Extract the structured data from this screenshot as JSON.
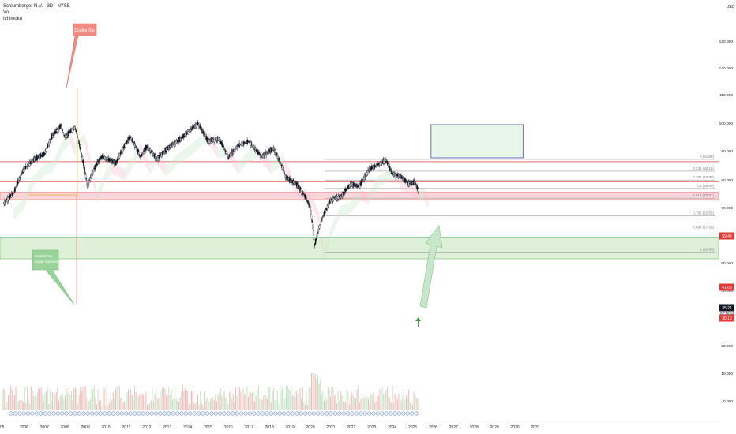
{
  "header": {
    "symbol": "Schlumberger N.V. · 3D · NYSE",
    "indicators": [
      "Vol",
      "Ichimoku"
    ]
  },
  "chart_data": {
    "type": "candlestick",
    "currency": "USD",
    "price_axis_ticks": [
      130,
      120,
      110,
      100,
      90,
      80,
      70,
      60,
      50,
      40,
      30,
      20,
      10,
      0
    ],
    "time_axis_ticks": [
      "2006",
      "2007",
      "2008",
      "2009",
      "2010",
      "2011",
      "2012",
      "2013",
      "2014",
      "2015",
      "2016",
      "2017",
      "2018",
      "2019",
      "2020",
      "2021",
      "2022",
      "2023",
      "2024",
      "2025",
      "2026",
      "2027",
      "2028",
      "2029",
      "2030",
      "2031"
    ],
    "first_tick_partial": "05",
    "price_labels": [
      {
        "value": "59.44",
        "color": "#e53935"
      },
      {
        "value": "41.63",
        "color": "#e53935"
      },
      {
        "value": "35.21",
        "color": "#131722"
      },
      {
        "value": "30.10",
        "color": "#e53935"
      }
    ],
    "current_price": 35.21,
    "countdown": "02:28:54",
    "fib_levels": [
      {
        "label": "0 (61.98)",
        "price": 61.98
      },
      {
        "label": "0.236 (50.15)",
        "price": 50.15
      },
      {
        "label": "0.382 (42.80)",
        "price": 42.8
      },
      {
        "label": "0.5 (36.90)",
        "price": 36.9
      },
      {
        "label": "0.618 (30.97)",
        "price": 30.97
      },
      {
        "label": "0.786 (22.55)",
        "price": 22.55
      },
      {
        "label": "0.886 (17.55)",
        "price": 17.55
      },
      {
        "label": "1 (11.80)",
        "price": 11.8
      }
    ],
    "horizontal_lines": [
      59.44,
      41.63,
      30.1
    ],
    "zones": [
      {
        "from": 30.1,
        "to": 34.5,
        "color": "#f8d7da"
      },
      {
        "from": 10.5,
        "to": 15.5,
        "color": "#dff0d8"
      },
      {
        "from": 87,
        "to": 100,
        "color": "#e8f5e9"
      }
    ],
    "annotations": [
      {
        "text": "Double Top",
        "type": "callout",
        "color": "#f28b82"
      },
      {
        "text": "Double Top target reached",
        "type": "callout",
        "color": "#9ad29b"
      }
    ],
    "price_path": [
      {
        "year": 2005.0,
        "close": 28
      },
      {
        "year": 2005.5,
        "close": 34
      },
      {
        "year": 2006.0,
        "close": 52
      },
      {
        "year": 2006.5,
        "close": 62
      },
      {
        "year": 2007.0,
        "close": 68
      },
      {
        "year": 2007.4,
        "close": 95
      },
      {
        "year": 2007.8,
        "close": 112
      },
      {
        "year": 2008.0,
        "close": 92
      },
      {
        "year": 2008.5,
        "close": 110
      },
      {
        "year": 2008.8,
        "close": 68
      },
      {
        "year": 2009.1,
        "close": 38
      },
      {
        "year": 2009.5,
        "close": 55
      },
      {
        "year": 2009.8,
        "close": 65
      },
      {
        "year": 2010.5,
        "close": 58
      },
      {
        "year": 2011.2,
        "close": 93
      },
      {
        "year": 2011.7,
        "close": 64
      },
      {
        "year": 2012.0,
        "close": 78
      },
      {
        "year": 2012.5,
        "close": 62
      },
      {
        "year": 2013.0,
        "close": 75
      },
      {
        "year": 2013.7,
        "close": 90
      },
      {
        "year": 2014.5,
        "close": 117
      },
      {
        "year": 2015.0,
        "close": 85
      },
      {
        "year": 2015.5,
        "close": 90
      },
      {
        "year": 2016.0,
        "close": 64
      },
      {
        "year": 2016.5,
        "close": 80
      },
      {
        "year": 2017.0,
        "close": 85
      },
      {
        "year": 2017.6,
        "close": 65
      },
      {
        "year": 2018.2,
        "close": 75
      },
      {
        "year": 2018.8,
        "close": 45
      },
      {
        "year": 2019.3,
        "close": 40
      },
      {
        "year": 2019.7,
        "close": 33
      },
      {
        "year": 2020.0,
        "close": 26
      },
      {
        "year": 2020.2,
        "close": 13
      },
      {
        "year": 2020.5,
        "close": 20
      },
      {
        "year": 2021.0,
        "close": 30
      },
      {
        "year": 2021.5,
        "close": 32
      },
      {
        "year": 2022.0,
        "close": 40
      },
      {
        "year": 2022.4,
        "close": 38
      },
      {
        "year": 2022.9,
        "close": 52
      },
      {
        "year": 2023.3,
        "close": 56
      },
      {
        "year": 2023.7,
        "close": 61
      },
      {
        "year": 2024.0,
        "close": 48
      },
      {
        "year": 2024.4,
        "close": 46
      },
      {
        "year": 2024.8,
        "close": 40
      },
      {
        "year": 2025.1,
        "close": 41
      },
      {
        "year": 2025.3,
        "close": 35
      }
    ],
    "grid": false,
    "scale": "log"
  }
}
